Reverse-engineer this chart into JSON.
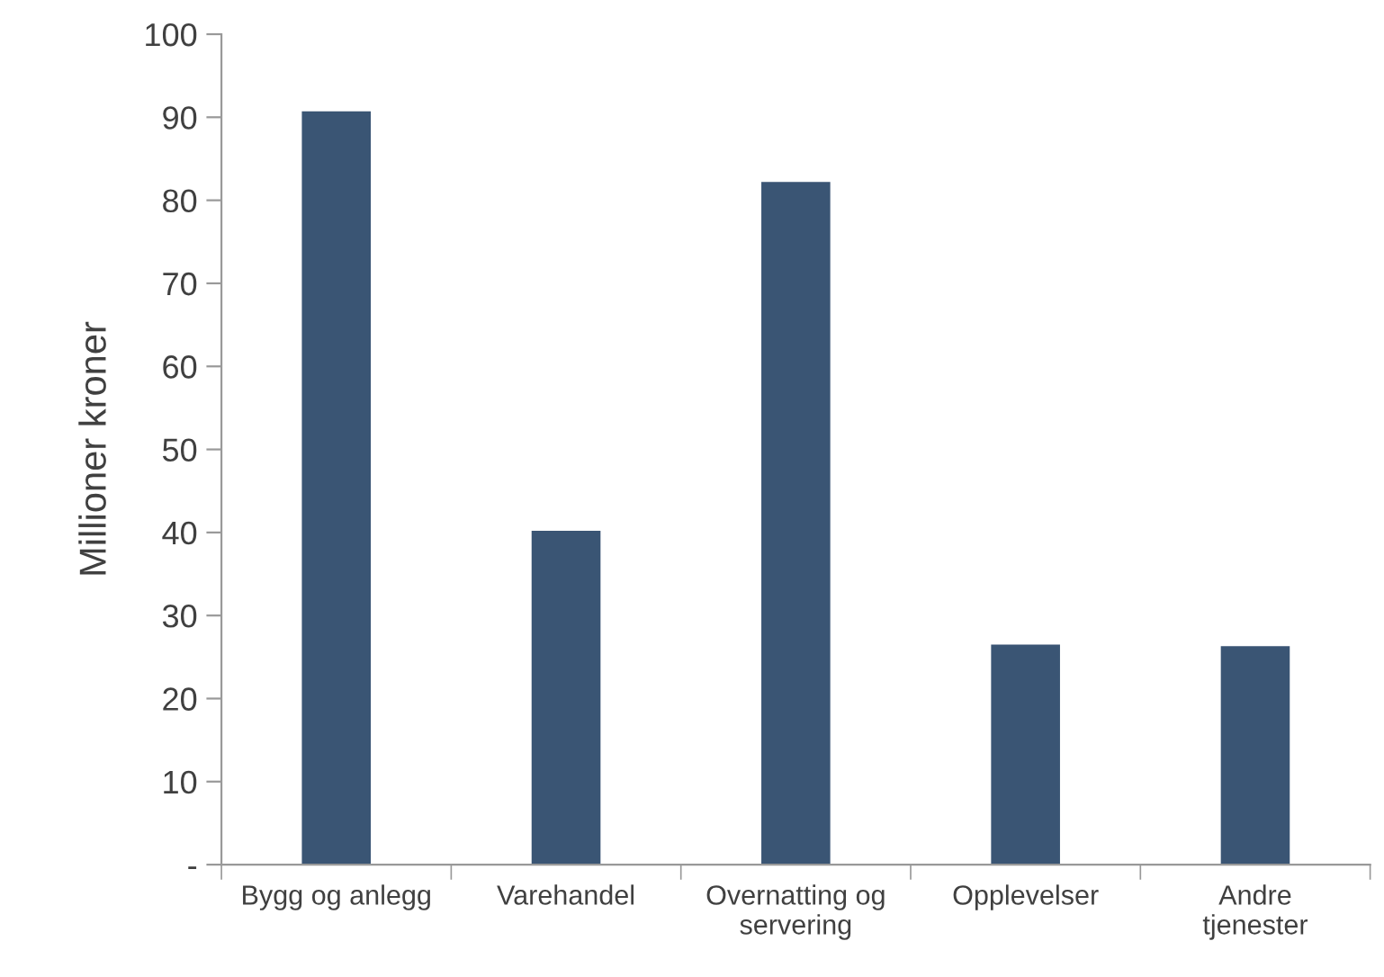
{
  "chart_data": {
    "type": "bar",
    "ylabel": "Millioner kroner",
    "categories": [
      "Bygg og anlegg",
      "Varehandel",
      "Overnatting og\nservering",
      "Opplevelser",
      "Andre\ntjenester"
    ],
    "values": [
      90.7,
      40.2,
      82.2,
      26.5,
      26.3
    ],
    "color": "#3a5574",
    "ylim": [
      0,
      100
    ],
    "yticks": [
      {
        "value": 0,
        "label": "-"
      },
      10,
      20,
      30,
      40,
      50,
      60,
      70,
      80,
      90,
      100
    ],
    "grid": false,
    "legend": false
  }
}
